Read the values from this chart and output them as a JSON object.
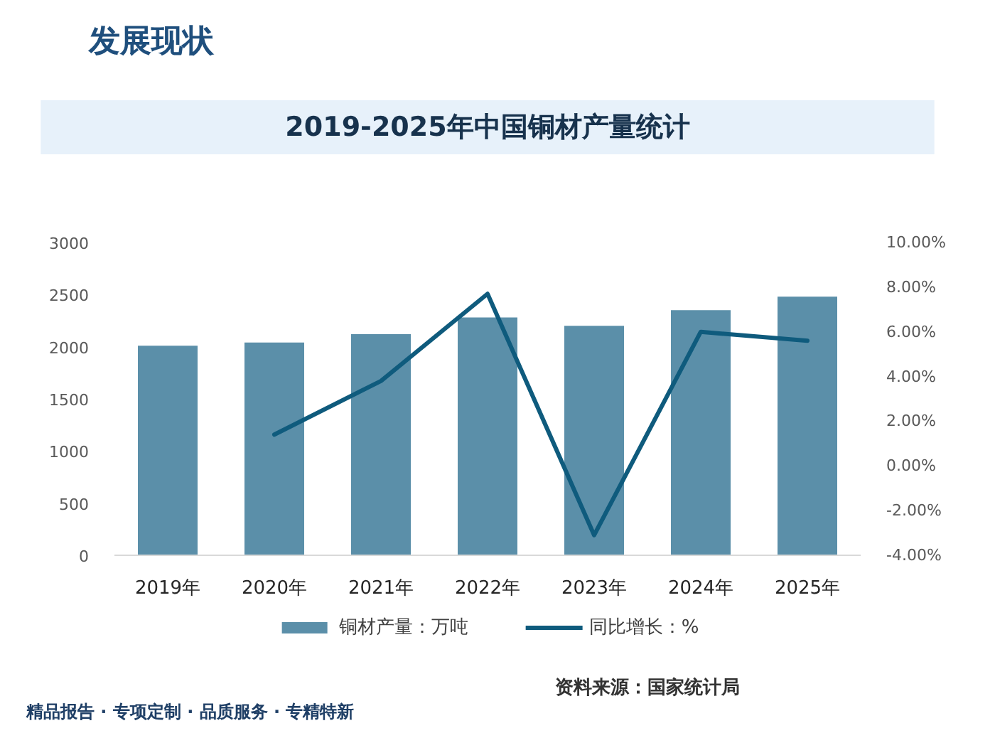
{
  "chart_data": {
    "type": "bar",
    "title": "2019-2025年中国铜材产量统计",
    "categories": [
      "2019年",
      "2020年",
      "2021年",
      "2022年",
      "2023年",
      "2024年",
      "2025年"
    ],
    "series": [
      {
        "name": "铜材产量：万吨",
        "color": "#5b8fa9",
        "values": [
          2010,
          2040,
          2120,
          2280,
          2200,
          2350,
          2480
        ]
      },
      {
        "name": "同比增长：%",
        "type": "line",
        "axis": "y2",
        "color": "#0f5b7d",
        "values": [
          null,
          1.4,
          3.8,
          7.7,
          -3.1,
          6.0,
          5.6
        ]
      }
    ],
    "ylim": [
      0,
      3000
    ],
    "yticks": [
      0,
      500,
      1000,
      1500,
      2000,
      2500,
      3000
    ],
    "y2lim": [
      -4,
      10
    ],
    "y2ticks": [
      {
        "value": -4,
        "label": "-4.00%"
      },
      {
        "value": -2,
        "label": "-2.00%"
      },
      {
        "value": 0,
        "label": "0.00%"
      },
      {
        "value": 2,
        "label": "2.00%"
      },
      {
        "value": 4,
        "label": "4.00%"
      },
      {
        "value": 6,
        "label": "6.00%"
      },
      {
        "value": 8,
        "label": "8.00%"
      },
      {
        "value": 10,
        "label": "10.00%"
      }
    ],
    "grid": false,
    "legend": "bottom",
    "annotations": [
      "发展现状",
      "精品报告 · 专项定制 · 品质服务 · 专精特新",
      "资料来源：国家统计局"
    ]
  }
}
